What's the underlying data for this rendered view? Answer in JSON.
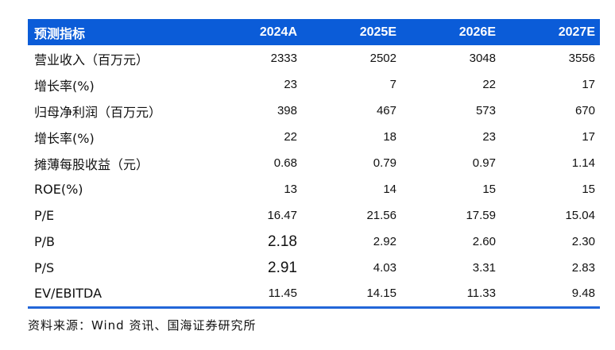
{
  "colors": {
    "header_bg": "#0b5cd8",
    "header_text": "#ffffff",
    "body_text": "#111111",
    "rule": "#2266d8"
  },
  "table": {
    "header": {
      "label": "预测指标",
      "columns": [
        "2024A",
        "2025E",
        "2026E",
        "2027E"
      ]
    },
    "rows": [
      {
        "label": "营业收入（百万元）",
        "values": [
          "2333",
          "2502",
          "3048",
          "3556"
        ]
      },
      {
        "label": "增长率(%)",
        "values": [
          "23",
          "7",
          "22",
          "17"
        ]
      },
      {
        "label": "归母净利润（百万元）",
        "values": [
          "398",
          "467",
          "573",
          "670"
        ]
      },
      {
        "label": "增长率(%)",
        "values": [
          "22",
          "18",
          "23",
          "17"
        ]
      },
      {
        "label": "摊薄每股收益（元）",
        "values": [
          "0.68",
          "0.79",
          "0.97",
          "1.14"
        ]
      },
      {
        "label": "ROE(%)",
        "values": [
          "13",
          "14",
          "15",
          "15"
        ]
      },
      {
        "label": "P/E",
        "values": [
          "16.47",
          "21.56",
          "17.59",
          "15.04"
        ]
      },
      {
        "label": "P/B",
        "values": [
          "2.18",
          "2.92",
          "2.60",
          "2.30"
        ]
      },
      {
        "label": "P/S",
        "values": [
          "2.91",
          "4.03",
          "3.31",
          "2.83"
        ]
      },
      {
        "label": "EV/EBITDA",
        "values": [
          "11.45",
          "14.15",
          "11.33",
          "9.48"
        ]
      }
    ]
  },
  "footer": {
    "source": "资料来源：Wind 资讯、国海证券研究所"
  }
}
